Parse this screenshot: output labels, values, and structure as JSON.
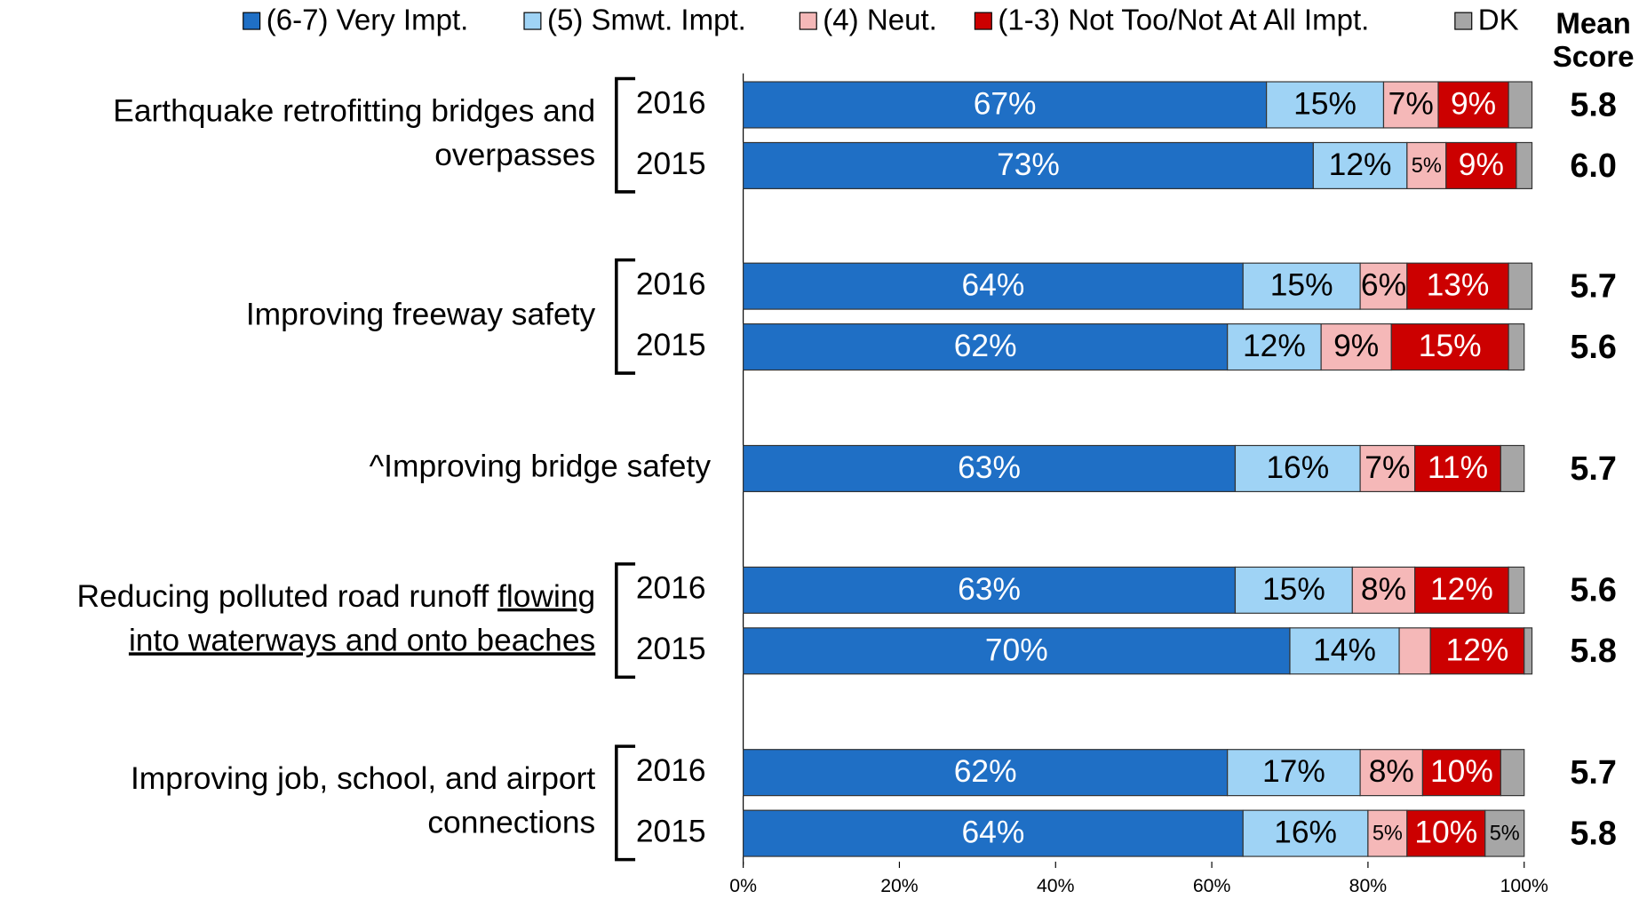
{
  "chart_data": {
    "type": "stacked_bar_horizontal",
    "legend_title": "Mean Score",
    "series": [
      {
        "name": "(6-7) Very Impt.",
        "color": "#1f6fc5",
        "values": [
          67,
          73,
          64,
          62,
          63,
          63,
          70,
          62,
          64
        ],
        "value_labels": [
          "67%",
          "73%",
          "64%",
          "62%",
          "63%",
          "63%",
          "70%",
          "62%",
          "64%"
        ]
      },
      {
        "name": "(5) Smwt. Impt.",
        "color": "#9fd3f5",
        "values": [
          15,
          12,
          15,
          12,
          16,
          15,
          14,
          17,
          16
        ],
        "value_labels": [
          "15%",
          "12%",
          "15%",
          "12%",
          "16%",
          "15%",
          "14%",
          "17%",
          "16%"
        ]
      },
      {
        "name": "(4) Neut.",
        "color": "#f5b8b8",
        "values": [
          7,
          5,
          6,
          9,
          7,
          8,
          4,
          8,
          5
        ],
        "value_labels": [
          "7%",
          "5%",
          "6%",
          "9%",
          "7%",
          "8%",
          null,
          "8%",
          "5%"
        ]
      },
      {
        "name": "(1-3) Not Too/Not At All Impt.",
        "color": "#cc0000",
        "values": [
          9,
          9,
          13,
          15,
          11,
          12,
          12,
          10,
          10
        ],
        "value_labels": [
          "9%",
          "9%",
          "13%",
          "15%",
          "11%",
          "12%",
          "12%",
          "10%",
          "10%"
        ]
      },
      {
        "name": "DK",
        "color": "#a6a6a6",
        "values": [
          3,
          2,
          3,
          2,
          3,
          2,
          1,
          3,
          5
        ],
        "value_labels": [
          null,
          null,
          null,
          null,
          null,
          null,
          null,
          null,
          "5%"
        ]
      }
    ],
    "categories": [
      "2016",
      "2015",
      "2016",
      "2015",
      null,
      "2016",
      "2015",
      "2016",
      "2015"
    ],
    "mean_scores": [
      "5.8",
      "6.0",
      "5.7",
      "5.6",
      "5.7",
      "5.6",
      "5.8",
      "5.7",
      "5.8"
    ],
    "groups": [
      {
        "lines": [
          [
            {
              "text": "Earthquake retrofitting bridges and"
            }
          ],
          [
            {
              "text": "overpasses"
            }
          ]
        ]
      },
      {
        "lines": [
          [
            {
              "text": "Improving freeway safety"
            }
          ]
        ]
      },
      {
        "lines": [
          [
            {
              "text": "^Improving bridge safety"
            }
          ]
        ]
      },
      {
        "lines": [
          [
            {
              "text": "Reducing polluted road runoff "
            },
            {
              "text": "flowing",
              "underline": true
            }
          ],
          [
            {
              "text": "into waterways and onto beaches",
              "underline": true
            }
          ]
        ]
      },
      {
        "lines": [
          [
            {
              "text": "Improving job, school, and airport"
            }
          ],
          [
            {
              "text": "connections"
            }
          ]
        ]
      }
    ],
    "xlim": [
      0,
      100
    ],
    "xticks": [
      {
        "value": 0,
        "label": "0%"
      },
      {
        "value": 20,
        "label": "20%"
      },
      {
        "value": 40,
        "label": "40%"
      },
      {
        "value": 60,
        "label": "60%"
      },
      {
        "value": 80,
        "label": "80%"
      },
      {
        "value": 100,
        "label": "100%"
      }
    ]
  }
}
